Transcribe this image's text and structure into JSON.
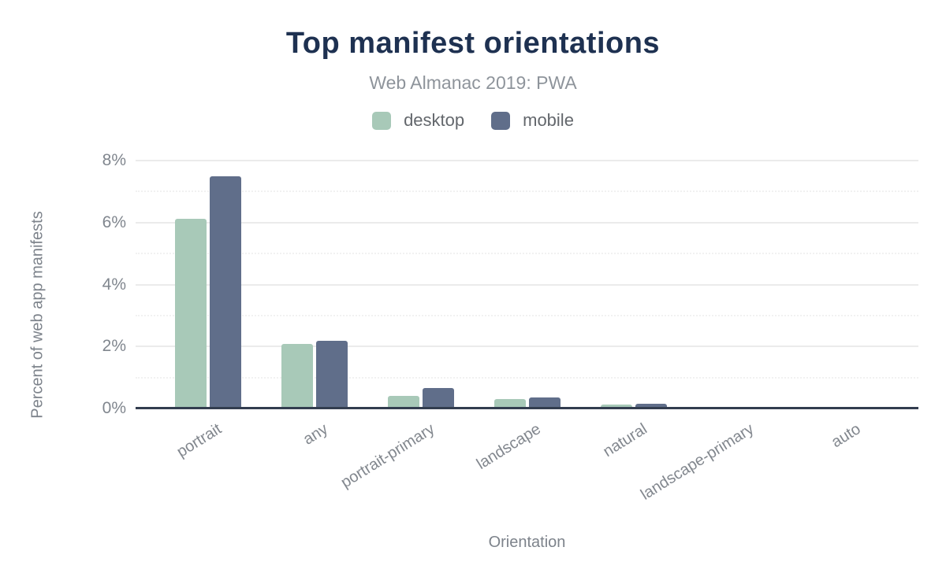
{
  "header": {
    "title": "Top manifest orientations",
    "subtitle": "Web Almanac 2019: PWA"
  },
  "chart_data": {
    "type": "bar",
    "title": "Top manifest orientations",
    "subtitle": "Web Almanac 2019: PWA",
    "categories": [
      "portrait",
      "any",
      "portrait-primary",
      "landscape",
      "natural",
      "landscape-primary",
      "auto"
    ],
    "series": [
      {
        "name": "desktop",
        "color": "#a8c9b8",
        "values": [
          6.13,
          2.09,
          0.4,
          0.3,
          0.14,
          0.05,
          0.02
        ]
      },
      {
        "name": "mobile",
        "color": "#606e8a",
        "values": [
          7.5,
          2.18,
          0.65,
          0.35,
          0.16,
          0.05,
          0.03
        ]
      }
    ],
    "xlabel": "Orientation",
    "ylabel": "Percent of web app manifests",
    "ylim": [
      0,
      8
    ],
    "yticks": [
      {
        "value": 0,
        "label": "0%"
      },
      {
        "value": 2,
        "label": "2%"
      },
      {
        "value": 4,
        "label": "4%"
      },
      {
        "value": 6,
        "label": "6%"
      },
      {
        "value": 8,
        "label": "8%"
      }
    ],
    "minor_gridlines": [
      1,
      3,
      5,
      7
    ],
    "grid": true,
    "legend_position": "top"
  },
  "colors": {
    "title": "#1e3151",
    "subtitle": "#8e949b",
    "tick_labels": "#80868e",
    "axis_titles": "#7d838b",
    "legend_text": "#63676c",
    "desktop_bar": "#a8c9b8",
    "mobile_bar": "#606e8a",
    "axis_line": "#323d4f",
    "gridline_major": "#ebebeb",
    "gridline_minor": "#f1f1f1",
    "background": "#ffffff"
  }
}
